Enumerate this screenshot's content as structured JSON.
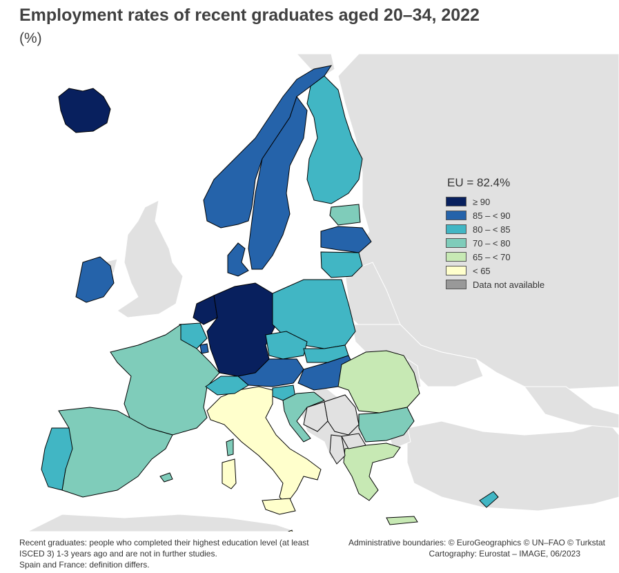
{
  "title": "Employment rates of recent graduates aged 20–34, 2022",
  "subtitle": "(%)",
  "legend": {
    "title": "EU = 82.4%",
    "items": [
      {
        "label": "≥ 90",
        "color": "#08205e"
      },
      {
        "label": "85 – < 90",
        "color": "#2563aa"
      },
      {
        "label": "80 – < 85",
        "color": "#41b6c4"
      },
      {
        "label": "70 – < 80",
        "color": "#7fccba"
      },
      {
        "label": "65 – < 70",
        "color": "#c7e9b4"
      },
      {
        "label": "< 65",
        "color": "#ffffcc"
      },
      {
        "label": "Data not available",
        "color": "#999999"
      }
    ]
  },
  "colors": {
    "non_eu_land": "#e1e1e1",
    "sea": "#ffffff",
    "border": "#000000"
  },
  "footer": {
    "note_line1": "Recent graduates: people who completed their highest education level (at least ISCED 3) 1-3 years ago and are not in further studies.",
    "note_line2": "Spain and France: definition differs.",
    "source_line1": "Administrative boundaries: © EuroGeographics © UN–FAO © Turkstat",
    "source_line2": "Cartography: Eurostat – IMAGE, 06/2023"
  }
}
